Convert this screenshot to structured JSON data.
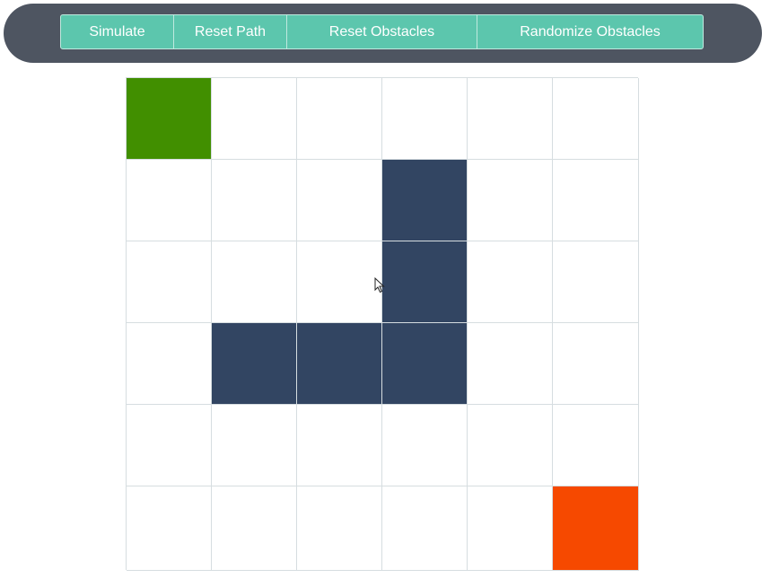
{
  "toolbar": {
    "buttons": [
      {
        "label": "Simulate"
      },
      {
        "label": "Reset Path"
      },
      {
        "label": "Reset Obstacles"
      },
      {
        "label": "Randomize Obstacles"
      }
    ]
  },
  "grid": {
    "rows": 6,
    "cols": 6,
    "colors": {
      "start": "#418f00",
      "end": "#f64900",
      "wall": "#324562",
      "empty": "#ffffff",
      "toolbar": "#4e5561",
      "button": "#5cc6ad"
    },
    "cells": [
      [
        "start",
        "empty",
        "empty",
        "empty",
        "empty",
        "empty"
      ],
      [
        "empty",
        "empty",
        "empty",
        "wall",
        "empty",
        "empty"
      ],
      [
        "empty",
        "empty",
        "empty",
        "wall",
        "empty",
        "empty"
      ],
      [
        "empty",
        "wall",
        "wall",
        "wall",
        "empty",
        "empty"
      ],
      [
        "empty",
        "empty",
        "empty",
        "empty",
        "empty",
        "empty"
      ],
      [
        "empty",
        "empty",
        "empty",
        "empty",
        "empty",
        "end"
      ]
    ]
  },
  "cursor": {
    "icon": "mouse-pointer-icon"
  }
}
